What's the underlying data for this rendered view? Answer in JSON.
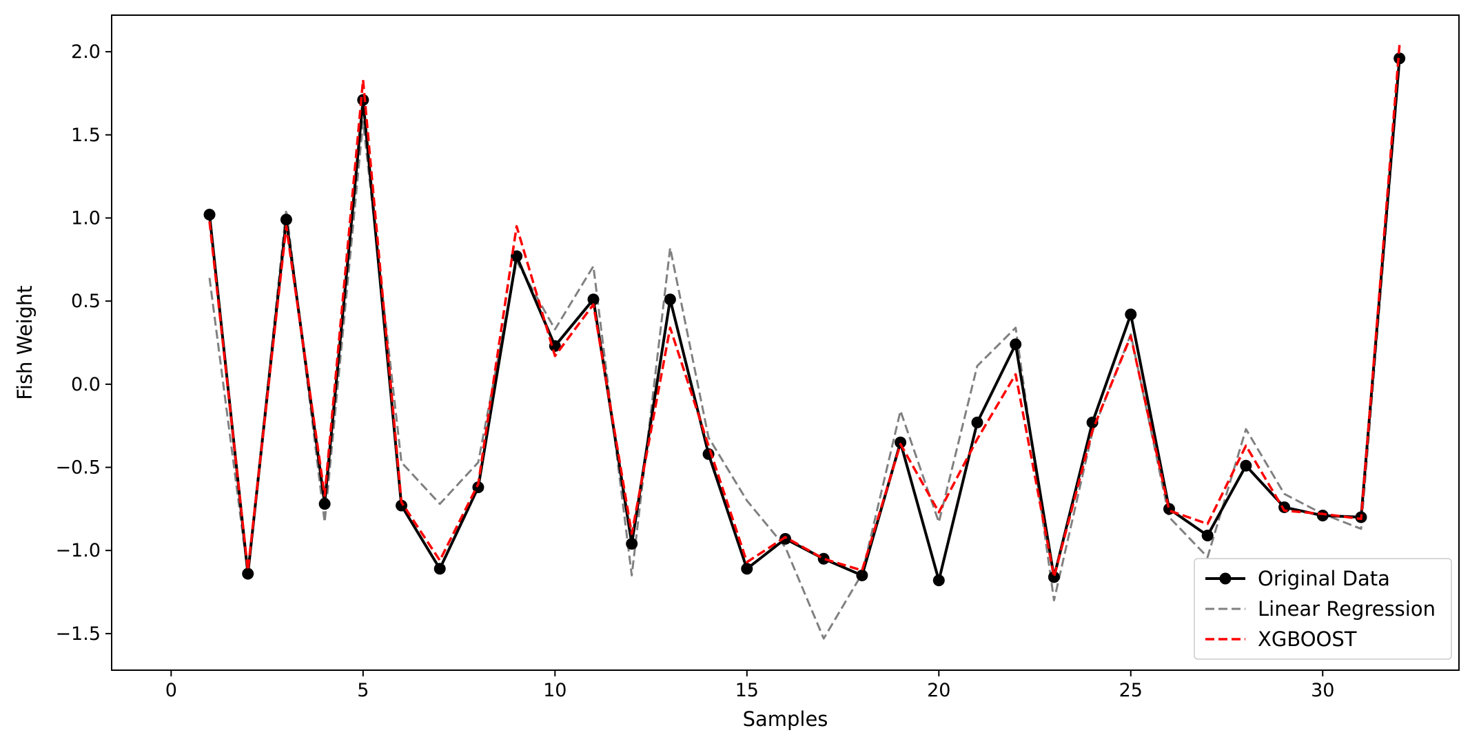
{
  "chart_data": {
    "type": "line",
    "xlabel": "Samples",
    "ylabel": "Fish Weight",
    "xlim": [
      -1.55,
      33.55
    ],
    "ylim": [
      -1.72,
      2.22
    ],
    "xticks": [
      0,
      5,
      10,
      15,
      20,
      25,
      30
    ],
    "yticks": [
      -1.5,
      -1.0,
      -0.5,
      0.0,
      0.5,
      1.0,
      1.5,
      2.0
    ],
    "xtick_labels": [
      "0",
      "5",
      "10",
      "15",
      "20",
      "25",
      "30"
    ],
    "ytick_labels": [
      "−1.5",
      "−1.0",
      "−0.5",
      "0.0",
      "0.5",
      "1.0",
      "1.5",
      "2.0"
    ],
    "grid": false,
    "legend_position": "lower-right",
    "x": [
      1,
      2,
      3,
      4,
      5,
      6,
      7,
      8,
      9,
      10,
      11,
      12,
      13,
      14,
      15,
      16,
      17,
      18,
      19,
      20,
      21,
      22,
      23,
      24,
      25,
      26,
      27,
      28,
      29,
      30,
      31,
      32
    ],
    "series": [
      {
        "name": "Original Data",
        "color": "#000000",
        "style": "solid-with-markers",
        "values": [
          1.02,
          -1.14,
          0.99,
          -0.72,
          1.71,
          -0.73,
          -1.11,
          -0.62,
          0.77,
          0.23,
          0.51,
          -0.96,
          0.51,
          -0.42,
          -1.11,
          -0.93,
          -1.05,
          -1.15,
          -0.35,
          -1.18,
          -0.23,
          0.24,
          -1.16,
          -0.23,
          0.42,
          -0.75,
          -0.91,
          -0.49,
          -0.74,
          -0.79,
          -0.8,
          1.96
        ]
      },
      {
        "name": "Linear Regression",
        "color": "#808080",
        "style": "dashed",
        "values": [
          0.64,
          -1.14,
          1.05,
          -0.83,
          1.58,
          -0.47,
          -0.72,
          -0.47,
          0.74,
          0.33,
          0.71,
          -1.15,
          0.82,
          -0.32,
          -0.7,
          -0.98,
          -1.53,
          -1.14,
          -0.16,
          -0.83,
          0.11,
          0.34,
          -1.3,
          -0.29,
          0.3,
          -0.8,
          -1.04,
          -0.27,
          -0.66,
          -0.78,
          -0.87,
          1.93
        ]
      },
      {
        "name": "XGBOOST",
        "color": "#ff0000",
        "style": "dashed",
        "values": [
          0.98,
          -1.12,
          0.95,
          -0.67,
          1.83,
          -0.71,
          -1.06,
          -0.6,
          0.95,
          0.17,
          0.48,
          -0.9,
          0.34,
          -0.37,
          -1.07,
          -0.92,
          -1.05,
          -1.12,
          -0.36,
          -0.77,
          -0.33,
          0.06,
          -1.16,
          -0.28,
          0.29,
          -0.76,
          -0.84,
          -0.37,
          -0.76,
          -0.78,
          -0.81,
          2.04
        ]
      }
    ]
  }
}
